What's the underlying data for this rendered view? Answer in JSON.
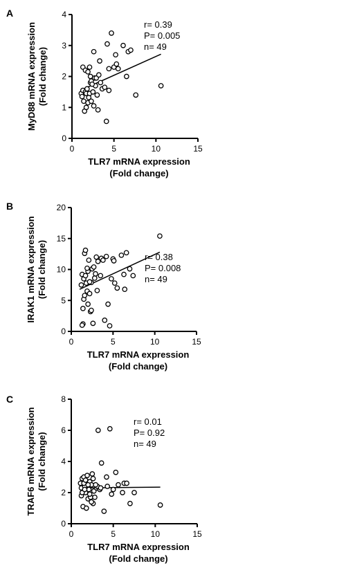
{
  "chart_data": [
    {
      "panel": "A",
      "type": "scatter",
      "xlabel": [
        "TLR7 mRNA expression",
        "(Fold change)"
      ],
      "ylabel": [
        "MyD88 mRNA expression",
        "(Fold change)"
      ],
      "xlim": [
        0,
        15
      ],
      "ylim": [
        0,
        4
      ],
      "xticks": [
        "0",
        "5",
        "10",
        "15"
      ],
      "yticks": [
        "0",
        "1",
        "2",
        "3",
        "4"
      ],
      "stats": [
        "r= 0.39",
        "P= 0.005",
        "n= 49"
      ],
      "fit": {
        "x": [
          1.0,
          10.6
        ],
        "y": [
          1.55,
          2.72
        ]
      },
      "points": [
        {
          "x": 1.1,
          "y": 1.45
        },
        {
          "x": 1.2,
          "y": 1.35
        },
        {
          "x": 1.3,
          "y": 1.55
        },
        {
          "x": 1.4,
          "y": 1.2
        },
        {
          "x": 1.5,
          "y": 0.88
        },
        {
          "x": 1.6,
          "y": 1.5
        },
        {
          "x": 1.7,
          "y": 1.0
        },
        {
          "x": 1.7,
          "y": 1.45
        },
        {
          "x": 1.8,
          "y": 1.6
        },
        {
          "x": 1.9,
          "y": 1.15
        },
        {
          "x": 2.0,
          "y": 1.32
        },
        {
          "x": 2.1,
          "y": 1.45
        },
        {
          "x": 2.2,
          "y": 1.8
        },
        {
          "x": 2.3,
          "y": 1.85
        },
        {
          "x": 2.5,
          "y": 1.5
        },
        {
          "x": 2.6,
          "y": 1.05
        },
        {
          "x": 2.7,
          "y": 1.95
        },
        {
          "x": 2.8,
          "y": 1.7
        },
        {
          "x": 3.0,
          "y": 1.4
        },
        {
          "x": 3.1,
          "y": 0.92
        },
        {
          "x": 1.3,
          "y": 2.3
        },
        {
          "x": 1.6,
          "y": 2.2
        },
        {
          "x": 1.9,
          "y": 2.15
        },
        {
          "x": 2.1,
          "y": 2.3
        },
        {
          "x": 2.3,
          "y": 1.2
        },
        {
          "x": 2.6,
          "y": 2.8
        },
        {
          "x": 2.2,
          "y": 2.0
        },
        {
          "x": 2.9,
          "y": 1.95
        },
        {
          "x": 3.2,
          "y": 2.05
        },
        {
          "x": 3.4,
          "y": 1.8
        },
        {
          "x": 3.6,
          "y": 1.6
        },
        {
          "x": 3.9,
          "y": 1.65
        },
        {
          "x": 4.1,
          "y": 0.55
        },
        {
          "x": 4.4,
          "y": 1.55
        },
        {
          "x": 4.4,
          "y": 2.25
        },
        {
          "x": 4.7,
          "y": 3.4
        },
        {
          "x": 5.0,
          "y": 2.3
        },
        {
          "x": 5.2,
          "y": 2.7
        },
        {
          "x": 5.3,
          "y": 2.4
        },
        {
          "x": 5.5,
          "y": 2.25
        },
        {
          "x": 6.1,
          "y": 3.0
        },
        {
          "x": 6.5,
          "y": 2.0
        },
        {
          "x": 6.7,
          "y": 2.8
        },
        {
          "x": 7.0,
          "y": 2.85
        },
        {
          "x": 7.6,
          "y": 1.4
        },
        {
          "x": 4.2,
          "y": 3.05
        },
        {
          "x": 3.3,
          "y": 2.5
        },
        {
          "x": 10.6,
          "y": 1.7
        },
        {
          "x": 2.4,
          "y": 1.75
        }
      ]
    },
    {
      "panel": "B",
      "type": "scatter",
      "xlabel": [
        "TLR7 mRNA expression",
        "(Fold change)"
      ],
      "ylabel": [
        "IRAK1 mRNA expression",
        "(Fold change)"
      ],
      "xlim": [
        0,
        15
      ],
      "ylim": [
        0,
        20
      ],
      "xticks": [
        "0",
        "5",
        "10",
        "15"
      ],
      "yticks": [
        "0",
        "5",
        "10",
        "15",
        "20"
      ],
      "stats": [
        "r= 0.38",
        "P= 0.008",
        "n= 49"
      ],
      "fit": {
        "x": [
          1.0,
          10.6
        ],
        "y": [
          6.8,
          12.8
        ]
      },
      "points": [
        {
          "x": 1.2,
          "y": 7.5
        },
        {
          "x": 1.3,
          "y": 9.2
        },
        {
          "x": 1.4,
          "y": 1.2
        },
        {
          "x": 1.5,
          "y": 5.2
        },
        {
          "x": 1.6,
          "y": 12.6
        },
        {
          "x": 1.7,
          "y": 13.1
        },
        {
          "x": 1.8,
          "y": 7.8
        },
        {
          "x": 1.9,
          "y": 6.5
        },
        {
          "x": 2.0,
          "y": 4.4
        },
        {
          "x": 2.0,
          "y": 9.7
        },
        {
          "x": 2.1,
          "y": 11.5
        },
        {
          "x": 2.2,
          "y": 6.1
        },
        {
          "x": 2.3,
          "y": 3.2
        },
        {
          "x": 2.4,
          "y": 7.9
        },
        {
          "x": 2.5,
          "y": 10.1
        },
        {
          "x": 2.6,
          "y": 1.3
        },
        {
          "x": 2.7,
          "y": 10.4
        },
        {
          "x": 2.8,
          "y": 8.6
        },
        {
          "x": 3.0,
          "y": 12.0
        },
        {
          "x": 3.2,
          "y": 11.3
        },
        {
          "x": 1.3,
          "y": 1.0
        },
        {
          "x": 1.4,
          "y": 3.7
        },
        {
          "x": 1.5,
          "y": 8.5
        },
        {
          "x": 1.7,
          "y": 9.0
        },
        {
          "x": 2.2,
          "y": 8.0
        },
        {
          "x": 2.4,
          "y": 3.4
        },
        {
          "x": 3.5,
          "y": 9.0
        },
        {
          "x": 3.6,
          "y": 11.8
        },
        {
          "x": 3.8,
          "y": 11.5
        },
        {
          "x": 4.0,
          "y": 1.8
        },
        {
          "x": 4.2,
          "y": 12.1
        },
        {
          "x": 4.4,
          "y": 4.4
        },
        {
          "x": 4.6,
          "y": 0.9
        },
        {
          "x": 4.8,
          "y": 8.5
        },
        {
          "x": 5.0,
          "y": 11.7
        },
        {
          "x": 5.1,
          "y": 11.4
        },
        {
          "x": 5.2,
          "y": 7.8
        },
        {
          "x": 5.5,
          "y": 7.0
        },
        {
          "x": 6.0,
          "y": 12.3
        },
        {
          "x": 6.3,
          "y": 9.2
        },
        {
          "x": 6.4,
          "y": 6.8
        },
        {
          "x": 6.6,
          "y": 12.7
        },
        {
          "x": 7.0,
          "y": 10.1
        },
        {
          "x": 7.4,
          "y": 9.0
        },
        {
          "x": 10.6,
          "y": 15.4
        },
        {
          "x": 1.9,
          "y": 10.2
        },
        {
          "x": 3.1,
          "y": 6.6
        },
        {
          "x": 1.6,
          "y": 5.8
        },
        {
          "x": 2.9,
          "y": 9.3
        }
      ]
    },
    {
      "panel": "C",
      "type": "scatter",
      "xlabel": [
        "TLR7 mRNA expression",
        "(Fold change)"
      ],
      "ylabel": [
        "TRAF6 mRNA expression",
        "(Fold change)"
      ],
      "xlim": [
        0,
        15
      ],
      "ylim": [
        0,
        8
      ],
      "xticks": [
        "0",
        "5",
        "10",
        "15"
      ],
      "yticks": [
        "0",
        "2",
        "4",
        "6",
        "8"
      ],
      "stats": [
        "r= 0.01",
        "P= 0.92",
        "n= 49"
      ],
      "fit": {
        "x": [
          1.0,
          10.6
        ],
        "y": [
          2.3,
          2.35
        ]
      },
      "points": [
        {
          "x": 1.1,
          "y": 2.6
        },
        {
          "x": 1.2,
          "y": 1.8
        },
        {
          "x": 1.2,
          "y": 2.3
        },
        {
          "x": 1.3,
          "y": 2.9
        },
        {
          "x": 1.4,
          "y": 1.1
        },
        {
          "x": 1.5,
          "y": 3.0
        },
        {
          "x": 1.6,
          "y": 2.4
        },
        {
          "x": 1.7,
          "y": 2.0
        },
        {
          "x": 1.8,
          "y": 1.0
        },
        {
          "x": 1.9,
          "y": 2.7
        },
        {
          "x": 2.0,
          "y": 1.6
        },
        {
          "x": 2.1,
          "y": 2.2
        },
        {
          "x": 2.2,
          "y": 2.7
        },
        {
          "x": 2.3,
          "y": 1.7
        },
        {
          "x": 2.4,
          "y": 2.5
        },
        {
          "x": 2.5,
          "y": 3.2
        },
        {
          "x": 2.6,
          "y": 1.3
        },
        {
          "x": 2.7,
          "y": 2.1
        },
        {
          "x": 2.8,
          "y": 1.7
        },
        {
          "x": 3.0,
          "y": 2.3
        },
        {
          "x": 1.3,
          "y": 2.0
        },
        {
          "x": 1.5,
          "y": 2.6
        },
        {
          "x": 1.7,
          "y": 2.8
        },
        {
          "x": 2.2,
          "y": 1.9
        },
        {
          "x": 2.4,
          "y": 1.4
        },
        {
          "x": 3.1,
          "y": 2.4
        },
        {
          "x": 3.2,
          "y": 6.0
        },
        {
          "x": 3.4,
          "y": 2.2
        },
        {
          "x": 3.6,
          "y": 3.9
        },
        {
          "x": 3.9,
          "y": 0.8
        },
        {
          "x": 4.2,
          "y": 3.0
        },
        {
          "x": 4.3,
          "y": 2.4
        },
        {
          "x": 4.6,
          "y": 6.1
        },
        {
          "x": 4.8,
          "y": 1.9
        },
        {
          "x": 5.0,
          "y": 2.2
        },
        {
          "x": 5.3,
          "y": 3.3
        },
        {
          "x": 5.6,
          "y": 2.5
        },
        {
          "x": 6.1,
          "y": 2.0
        },
        {
          "x": 6.3,
          "y": 2.6
        },
        {
          "x": 6.6,
          "y": 2.6
        },
        {
          "x": 7.0,
          "y": 1.3
        },
        {
          "x": 7.5,
          "y": 2.0
        },
        {
          "x": 10.6,
          "y": 1.2
        },
        {
          "x": 1.9,
          "y": 3.1
        },
        {
          "x": 2.9,
          "y": 2.5
        },
        {
          "x": 3.5,
          "y": 2.3
        },
        {
          "x": 1.6,
          "y": 2.2
        },
        {
          "x": 2.0,
          "y": 2.5
        },
        {
          "x": 2.6,
          "y": 2.9
        }
      ]
    }
  ]
}
